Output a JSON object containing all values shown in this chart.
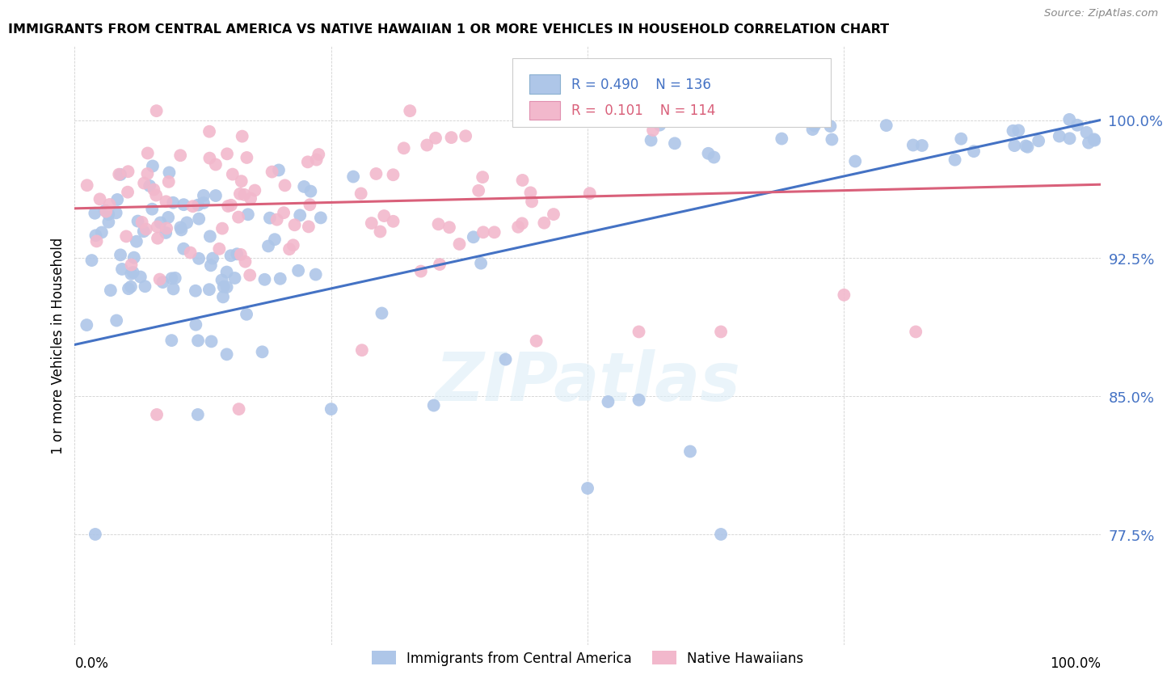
{
  "title": "IMMIGRANTS FROM CENTRAL AMERICA VS NATIVE HAWAIIAN 1 OR MORE VEHICLES IN HOUSEHOLD CORRELATION CHART",
  "source": "Source: ZipAtlas.com",
  "ylabel": "1 or more Vehicles in Household",
  "ytick_labels": [
    "77.5%",
    "85.0%",
    "92.5%",
    "100.0%"
  ],
  "ytick_values": [
    0.775,
    0.85,
    0.925,
    1.0
  ],
  "xlim": [
    0.0,
    1.0
  ],
  "ylim": [
    0.715,
    1.04
  ],
  "legend_blue_label": "Immigrants from Central America",
  "legend_pink_label": "Native Hawaiians",
  "R_blue": 0.49,
  "N_blue": 136,
  "R_pink": 0.101,
  "N_pink": 114,
  "blue_color": "#aec6e8",
  "pink_color": "#f2b8cc",
  "line_blue": "#4472c4",
  "line_pink": "#d9607a",
  "watermark": "ZIPatlas",
  "blue_line_start": 0.878,
  "blue_line_end": 1.0,
  "pink_line_start": 0.952,
  "pink_line_end": 0.965
}
